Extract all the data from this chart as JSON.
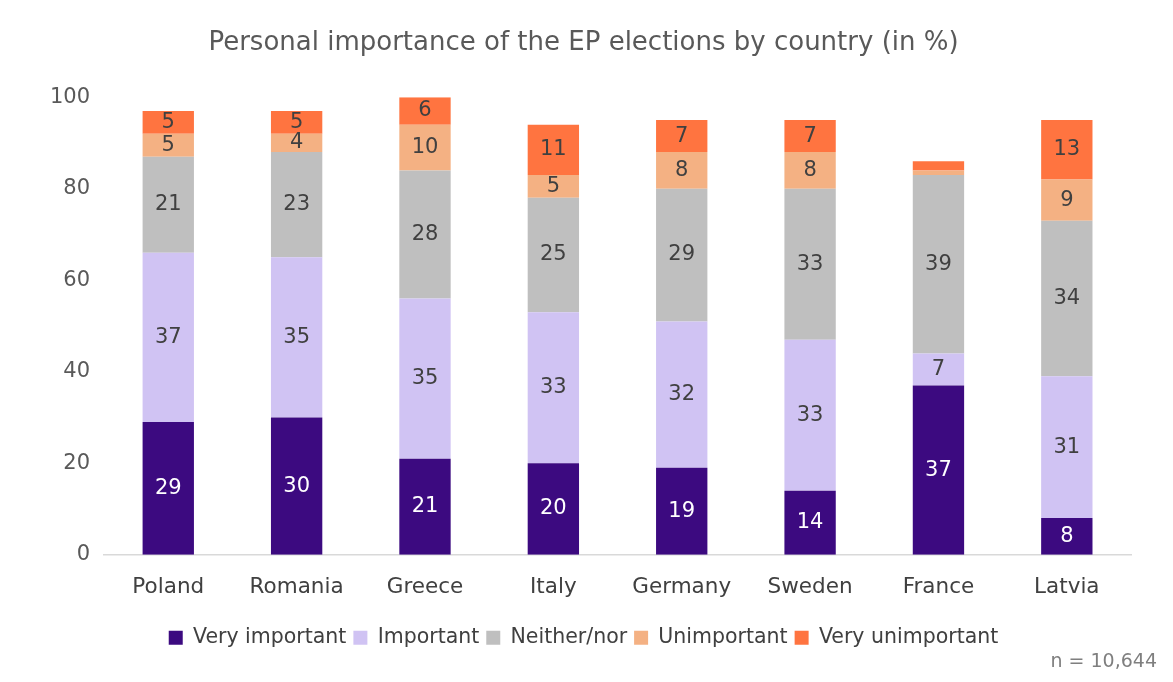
{
  "chart_data": {
    "type": "bar",
    "title": "Personal importance of the EP elections by country (in %)",
    "categories": [
      "Poland",
      "Romania",
      "Greece",
      "Italy",
      "Germany",
      "Sweden",
      "France",
      "Latvia"
    ],
    "stacked": true,
    "series": [
      {
        "name": "Very important",
        "color": "#3c0a80",
        "values": [
          29,
          30,
          21,
          20,
          19,
          14,
          37,
          8
        ],
        "value_labels": [
          "29",
          "30",
          "21",
          "20",
          "19",
          "14",
          "37",
          "8"
        ]
      },
      {
        "name": "Important",
        "color": "#d0c3f3",
        "values": [
          37,
          35,
          35,
          33,
          32,
          33,
          7,
          31
        ],
        "value_labels": [
          "37",
          "35",
          "35",
          "33",
          "32",
          "33",
          "7",
          "31"
        ]
      },
      {
        "name": "Neither/nor",
        "color": "#bfbfbf",
        "values": [
          21,
          23,
          28,
          25,
          29,
          33,
          39,
          34
        ],
        "value_labels": [
          "21",
          "23",
          "28",
          "25",
          "29",
          "33",
          "39",
          "34"
        ]
      },
      {
        "name": "Unimportant",
        "color": "#f4b183",
        "values": [
          5,
          4,
          10,
          5,
          8,
          8,
          1,
          9
        ],
        "value_labels": [
          "5",
          "4",
          "10",
          "5",
          "8",
          "8",
          null,
          "9"
        ]
      },
      {
        "name": "Very unimportant",
        "color": "#ff7440",
        "values": [
          5,
          5,
          6,
          11,
          7,
          7,
          2,
          13
        ],
        "value_labels": [
          "5",
          "5",
          "6",
          "11",
          "7",
          "7",
          null,
          "13"
        ]
      }
    ],
    "ylim": [
      0,
      100
    ],
    "yticks": [
      0,
      20,
      40,
      60,
      80,
      100
    ],
    "legend": "bottom",
    "annotations": [
      "n = 10,644"
    ]
  }
}
